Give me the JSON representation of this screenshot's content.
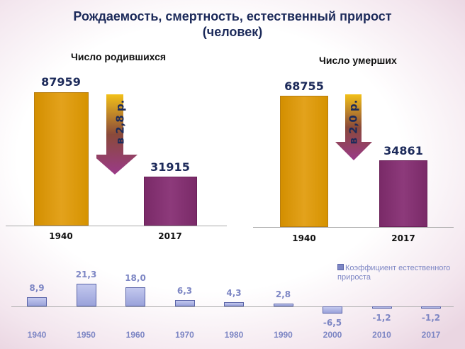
{
  "title_line1": "Рождаемость, смертность, естественный прирост",
  "title_line2": "(человек)",
  "chart_data": [
    {
      "type": "bar",
      "title": "Число родившихся",
      "categories": [
        "1940",
        "2017"
      ],
      "values": [
        87959,
        31915
      ],
      "annotation": "в 2,8 р.",
      "colors": [
        "#dc9a10",
        "#86336f"
      ]
    },
    {
      "type": "bar",
      "title": "Число умерших",
      "categories": [
        "1940",
        "2017"
      ],
      "values": [
        68755,
        34861
      ],
      "annotation": "в 2,0 р.",
      "colors": [
        "#dc9a10",
        "#86336f"
      ]
    },
    {
      "type": "bar",
      "legend": "Коэффициент естественного прироста",
      "legend_position": "top-right",
      "categories": [
        "1940",
        "1950",
        "1960",
        "1970",
        "1980",
        "1990",
        "2000",
        "2010",
        "2017"
      ],
      "values": [
        8.9,
        21.3,
        18.0,
        6.3,
        4.3,
        2.8,
        -6.5,
        -1.2,
        -1.2
      ],
      "labels": [
        "8,9",
        "21,3",
        "18,0",
        "6,3",
        "4,3",
        "2,8",
        "-6,5",
        "-1,2",
        "-1,2"
      ],
      "color": "#a9b0e2"
    }
  ]
}
